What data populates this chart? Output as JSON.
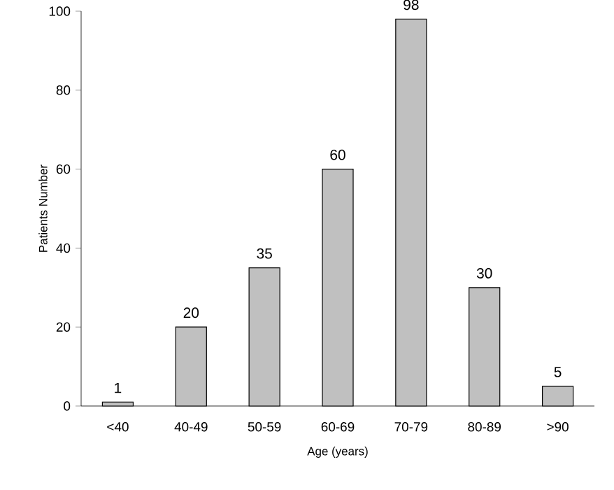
{
  "chart_data": {
    "type": "bar",
    "xlabel": "Age (years)",
    "ylabel": "Patients Number",
    "categories": [
      "<40",
      "40-49",
      "50-59",
      "60-69",
      "70-79",
      "80-89",
      ">90"
    ],
    "values": [
      1,
      20,
      35,
      60,
      98,
      30,
      5
    ],
    "color": "#c0c0c0",
    "ylim": [
      0,
      100
    ],
    "yticks": [
      0,
      20,
      40,
      60,
      80,
      100
    ],
    "data_labels": true
  }
}
